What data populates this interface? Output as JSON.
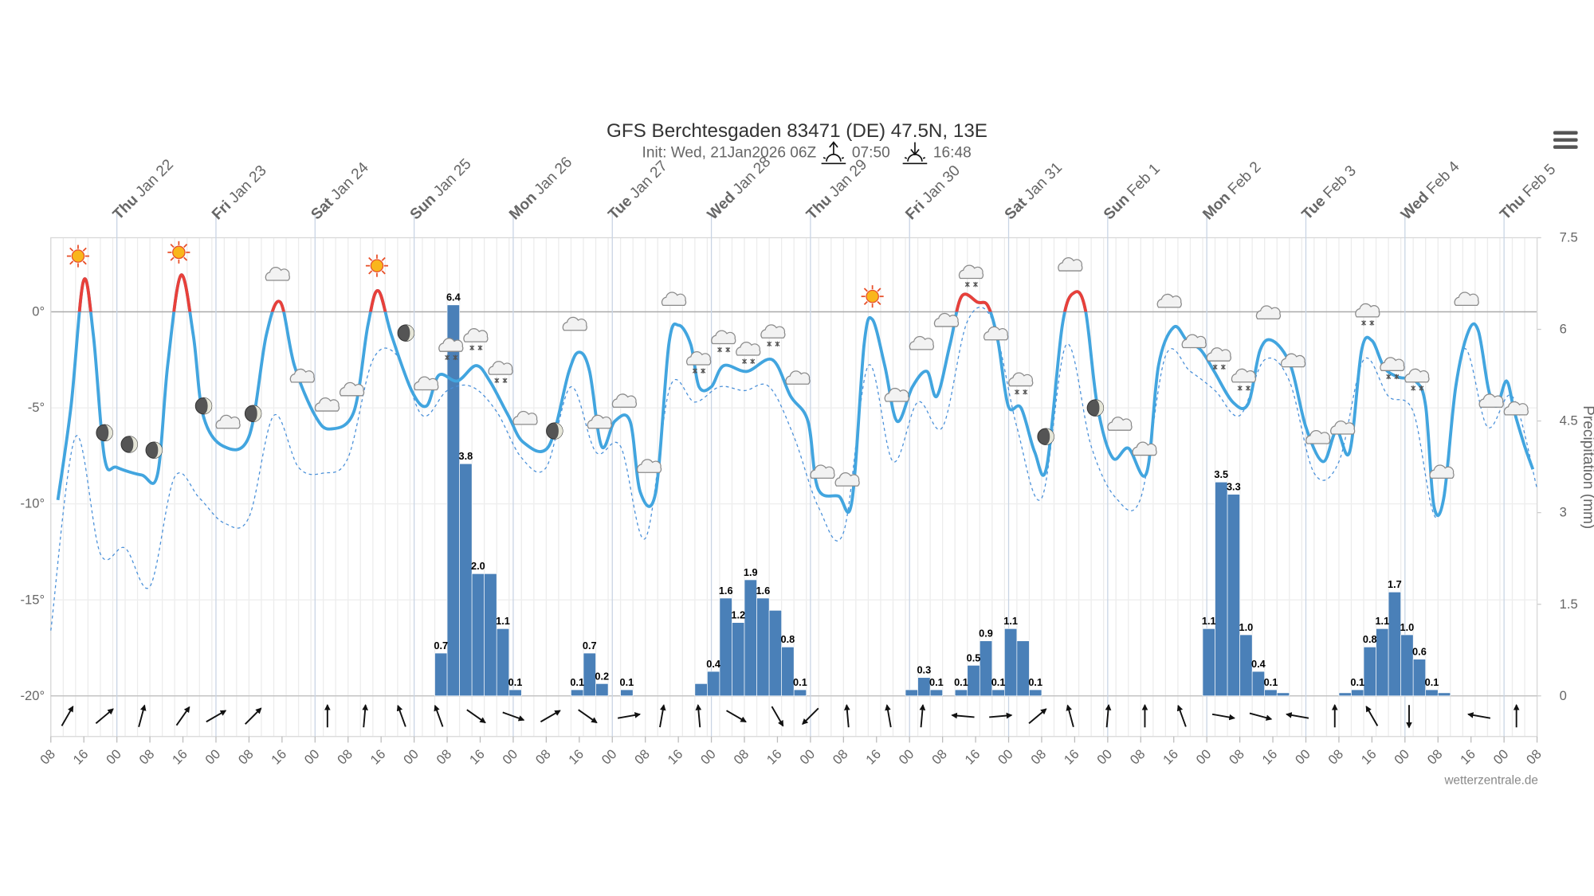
{
  "chart_data": {
    "type": "meteogram",
    "title": "GFS Berchtesgaden 83471 (DE) 47.5N, 13E",
    "subtitle": "Init: Wed, 21Jan2026 06Z",
    "sunrise": "07:50",
    "sunset": "16:48",
    "credit": "wetterzentrale.de",
    "xlim": [
      0,
      360
    ],
    "xticks": [
      {
        "value": 0,
        "label": "08"
      },
      {
        "value": 8,
        "label": "16"
      },
      {
        "value": 16,
        "label": "00"
      },
      {
        "value": 24,
        "label": "08"
      },
      {
        "value": 32,
        "label": "16"
      },
      {
        "value": 40,
        "label": "00"
      },
      {
        "value": 48,
        "label": "08"
      },
      {
        "value": 56,
        "label": "16"
      },
      {
        "value": 64,
        "label": "00"
      },
      {
        "value": 72,
        "label": "08"
      },
      {
        "value": 80,
        "label": "16"
      },
      {
        "value": 88,
        "label": "00"
      },
      {
        "value": 96,
        "label": "08"
      },
      {
        "value": 104,
        "label": "16"
      },
      {
        "value": 112,
        "label": "00"
      },
      {
        "value": 120,
        "label": "08"
      },
      {
        "value": 128,
        "label": "16"
      },
      {
        "value": 136,
        "label": "00"
      },
      {
        "value": 144,
        "label": "08"
      },
      {
        "value": 152,
        "label": "16"
      },
      {
        "value": 160,
        "label": "00"
      },
      {
        "value": 168,
        "label": "08"
      },
      {
        "value": 176,
        "label": "16"
      },
      {
        "value": 184,
        "label": "00"
      },
      {
        "value": 192,
        "label": "08"
      },
      {
        "value": 200,
        "label": "16"
      },
      {
        "value": 208,
        "label": "00"
      },
      {
        "value": 216,
        "label": "08"
      },
      {
        "value": 224,
        "label": "16"
      },
      {
        "value": 232,
        "label": "00"
      },
      {
        "value": 240,
        "label": "08"
      },
      {
        "value": 248,
        "label": "16"
      },
      {
        "value": 256,
        "label": "00"
      },
      {
        "value": 264,
        "label": "08"
      },
      {
        "value": 272,
        "label": "16"
      },
      {
        "value": 280,
        "label": "00"
      },
      {
        "value": 288,
        "label": "08"
      },
      {
        "value": 296,
        "label": "16"
      },
      {
        "value": 304,
        "label": "00"
      },
      {
        "value": 312,
        "label": "08"
      },
      {
        "value": 320,
        "label": "16"
      },
      {
        "value": 328,
        "label": "00"
      },
      {
        "value": 336,
        "label": "08"
      },
      {
        "value": 344,
        "label": "16"
      },
      {
        "value": 352,
        "label": "00"
      },
      {
        "value": 360,
        "label": "08"
      }
    ],
    "day_ticks": [
      {
        "value": 16,
        "weekday": "Thu",
        "date": "Jan 22"
      },
      {
        "value": 40,
        "weekday": "Fri",
        "date": "Jan 23"
      },
      {
        "value": 64,
        "weekday": "Sat",
        "date": "Jan 24"
      },
      {
        "value": 88,
        "weekday": "Sun",
        "date": "Jan 25"
      },
      {
        "value": 112,
        "weekday": "Mon",
        "date": "Jan 26"
      },
      {
        "value": 136,
        "weekday": "Tue",
        "date": "Jan 27"
      },
      {
        "value": 160,
        "weekday": "Wed",
        "date": "Jan 28"
      },
      {
        "value": 184,
        "weekday": "Thu",
        "date": "Jan 29"
      },
      {
        "value": 208,
        "weekday": "Fri",
        "date": "Jan 30"
      },
      {
        "value": 232,
        "weekday": "Sat",
        "date": "Jan 31"
      },
      {
        "value": 256,
        "weekday": "Sun",
        "date": "Feb 1"
      },
      {
        "value": 280,
        "weekday": "Mon",
        "date": "Feb 2"
      },
      {
        "value": 304,
        "weekday": "Tue",
        "date": "Feb 3"
      },
      {
        "value": 328,
        "weekday": "Wed",
        "date": "Feb 4"
      },
      {
        "value": 352,
        "weekday": "Thu",
        "date": "Feb 5"
      }
    ],
    "ylim": [
      -20,
      3.86
    ],
    "yticks": [
      {
        "value": 0,
        "label": "0°"
      },
      {
        "value": -5,
        "label": "-5°"
      },
      {
        "value": -10,
        "label": "-10°"
      },
      {
        "value": -15,
        "label": "-15°"
      },
      {
        "value": -20,
        "label": "-20°"
      }
    ],
    "y2lim": [
      0,
      7.5
    ],
    "y2ticks": [
      0,
      1.5,
      3,
      4.5,
      6,
      7.5
    ],
    "y2label": "Precipitation (mm)",
    "temperature": {
      "color": "#42a5df",
      "color_above_zero": "#e8403a",
      "x": [
        1.7,
        4.9,
        7.9,
        10.3,
        13,
        16,
        22,
        25.8,
        28.3,
        31.5,
        34.5,
        36.9,
        41.8,
        48,
        52.2,
        55.6,
        59,
        64,
        67.7,
        73.4,
        76.8,
        79.3,
        82.5,
        87.4,
        91,
        94,
        98.5,
        103,
        106.3,
        110.8,
        114.5,
        120.6,
        125.5,
        128,
        130.5,
        133.4,
        136.6,
        140.3,
        142.8,
        146.5,
        149.7,
        152.1,
        155,
        157,
        160,
        163,
        168.6,
        174.8,
        179.2,
        183.4,
        185.8,
        190.8,
        194,
        197,
        199,
        202,
        205,
        208.7,
        212.2,
        214.6,
        217.8,
        220.6,
        224.5,
        227,
        229.4,
        231.9,
        235,
        238.3,
        241.2,
        245,
        247.9,
        250.6,
        253.5,
        257.2,
        261,
        265.4,
        268.3,
        272,
        275.2,
        278.6,
        281.8,
        286.3,
        290,
        292.9,
        295.9,
        300.3,
        304,
        308.2,
        311.4,
        314.6,
        317.5,
        320,
        323,
        326.4,
        330.5,
        333,
        335,
        337.4,
        340.3,
        343.4,
        345.8,
        348.3,
        350.3,
        352.6,
        354.5,
        357,
        359
      ],
      "values": [
        -9.8,
        -4.9,
        1.6,
        -1.2,
        -7.6,
        -8.1,
        -8.5,
        -8.5,
        -2.8,
        1.9,
        -1.2,
        -5.4,
        -7.0,
        -6.5,
        -1.2,
        0.5,
        -2.8,
        -5.4,
        -6.1,
        -5.2,
        -0.7,
        1.1,
        -1.2,
        -4.1,
        -4.9,
        -3.3,
        -3.6,
        -2.8,
        -3.6,
        -5.4,
        -6.8,
        -7.0,
        -3.1,
        -2.1,
        -3.1,
        -7.0,
        -5.7,
        -5.7,
        -9.4,
        -9.4,
        -1.7,
        -0.7,
        -1.7,
        -3.9,
        -3.9,
        -2.8,
        -3.1,
        -2.5,
        -4.4,
        -5.7,
        -9.2,
        -9.6,
        -9.9,
        -1.7,
        -0.4,
        -2.8,
        -5.7,
        -3.9,
        -3.1,
        -4.4,
        -1.7,
        0.8,
        0.5,
        0.3,
        -1.5,
        -4.9,
        -5.0,
        -7.3,
        -8.1,
        -0.7,
        1.0,
        0.1,
        -4.9,
        -7.6,
        -7.1,
        -8.4,
        -2.8,
        -0.8,
        -1.5,
        -2.0,
        -3.1,
        -4.7,
        -4.8,
        -2.0,
        -1.5,
        -2.8,
        -6.0,
        -7.8,
        -6.2,
        -7.3,
        -2.0,
        -1.5,
        -2.9,
        -3.4,
        -3.6,
        -4.9,
        -10.1,
        -9.7,
        -3.9,
        -1.0,
        -1.0,
        -4.1,
        -4.9,
        -3.6,
        -5.2,
        -7.0,
        -8.2
      ]
    },
    "dewpoint": {
      "color": "#4a90d9",
      "x": [
        0,
        6,
        12,
        18,
        24,
        30,
        36,
        42,
        48,
        54,
        60,
        66,
        72,
        78,
        84,
        90,
        96,
        102,
        108,
        114,
        120,
        126,
        132,
        138,
        144,
        150,
        156,
        162,
        168,
        174,
        180,
        186,
        192,
        198,
        204,
        210,
        216,
        222,
        228,
        234,
        240,
        246,
        252,
        258,
        264,
        270,
        276,
        282,
        288,
        294,
        300,
        306,
        312,
        318,
        324,
        330,
        336,
        342,
        348,
        354,
        360
      ],
      "values": [
        -16.6,
        -6.5,
        -12.6,
        -12.3,
        -14.3,
        -8.6,
        -9.7,
        -11.0,
        -10.7,
        -5.4,
        -8.1,
        -8.4,
        -7.6,
        -2.5,
        -2.3,
        -5.4,
        -4.1,
        -3.9,
        -5.2,
        -7.6,
        -8.1,
        -3.9,
        -7.3,
        -7.0,
        -11.8,
        -3.9,
        -4.7,
        -3.9,
        -4.1,
        -3.9,
        -6.5,
        -10.2,
        -11.5,
        -2.8,
        -7.8,
        -4.7,
        -6.0,
        -0.5,
        -0.4,
        -6.0,
        -9.7,
        -1.7,
        -7.0,
        -9.7,
        -9.7,
        -2.3,
        -3.1,
        -4.1,
        -5.4,
        -2.5,
        -3.6,
        -8.4,
        -7.8,
        -2.5,
        -4.4,
        -5.2,
        -10.7,
        -2.0,
        -6.0,
        -4.4,
        -9.2
      ]
    },
    "precipitation": {
      "axis": "y2",
      "color": "#4a80b8",
      "x": [
        93,
        96,
        99,
        102,
        105,
        108,
        111,
        126,
        129,
        132,
        138,
        156,
        159,
        162,
        165,
        168,
        171,
        174,
        177,
        180,
        207,
        210,
        213,
        219,
        222,
        225,
        228,
        231,
        234,
        237,
        279,
        282,
        285,
        288,
        291,
        294,
        297,
        312,
        315,
        318,
        321,
        324,
        327,
        330,
        333,
        336
      ],
      "values": [
        0.7,
        6.4,
        3.8,
        2.0,
        2.0,
        1.1,
        0.1,
        0.1,
        0.7,
        0.2,
        0.1,
        0.2,
        0.4,
        1.6,
        1.2,
        1.9,
        1.6,
        1.4,
        0.8,
        0.1,
        0.1,
        0.3,
        0.1,
        0.1,
        0.5,
        0.9,
        0.1,
        1.1,
        0.9,
        0.1,
        1.1,
        3.5,
        3.3,
        1.0,
        0.4,
        0.1,
        0.05,
        0.05,
        0.1,
        0.8,
        1.1,
        1.7,
        1.0,
        0.6,
        0.1,
        0.05
      ],
      "value_labels": [
        "0.7",
        "6.4",
        "3.8",
        "2.0",
        null,
        "1.1",
        "0.1",
        "0.1",
        "0.7",
        "0.2",
        "0.1",
        null,
        "0.4",
        "1.6",
        "1.2",
        "1.9",
        "1.6",
        null,
        "0.8",
        "0.1",
        null,
        "0.3",
        "0.1",
        "0.1",
        "0.5",
        "0.9",
        "0.1",
        "1.1",
        null,
        "0.1",
        "1.1",
        "3.5",
        "3.3",
        "1.0",
        "0.4",
        "0.1",
        null,
        null,
        "0.1",
        "0.8",
        "1.1",
        "1.7",
        "1.0",
        "0.6",
        "0.1",
        null
      ]
    },
    "wind": {
      "x": [
        4,
        13,
        22,
        32,
        40,
        49,
        67,
        76,
        85,
        94,
        103,
        112,
        121,
        130,
        140,
        148,
        157,
        166,
        176,
        184,
        193,
        203,
        211,
        221,
        230,
        239,
        247,
        256,
        265,
        274,
        284,
        293,
        302,
        311,
        320,
        329,
        346,
        355
      ],
      "direction": [
        30,
        50,
        15,
        35,
        60,
        45,
        0,
        5,
        340,
        340,
        125,
        110,
        60,
        125,
        80,
        10,
        355,
        120,
        150,
        225,
        355,
        350,
        5,
        275,
        85,
        50,
        345,
        5,
        0,
        340,
        100,
        105,
        280,
        0,
        330,
        180,
        280,
        0
      ]
    },
    "weather_symbols": [
      {
        "x": 6.6,
        "y": 2.9,
        "symbol": "sun"
      },
      {
        "x": 13,
        "y": -6.3,
        "symbol": "moon"
      },
      {
        "x": 19,
        "y": -6.9,
        "symbol": "moon"
      },
      {
        "x": 25,
        "y": -7.2,
        "symbol": "moon"
      },
      {
        "x": 31,
        "y": 3.1,
        "symbol": "sun"
      },
      {
        "x": 37,
        "y": -4.9,
        "symbol": "moon"
      },
      {
        "x": 43,
        "y": -5.8,
        "symbol": "cloud"
      },
      {
        "x": 49,
        "y": -5.3,
        "symbol": "moon"
      },
      {
        "x": 55,
        "y": 1.9,
        "symbol": "cloud"
      },
      {
        "x": 61,
        "y": -3.4,
        "symbol": "cloud"
      },
      {
        "x": 67,
        "y": -4.9,
        "symbol": "cloud"
      },
      {
        "x": 73,
        "y": -4.1,
        "symbol": "cloud"
      },
      {
        "x": 79,
        "y": 2.4,
        "symbol": "sun"
      },
      {
        "x": 86,
        "y": -1.1,
        "symbol": "moon"
      },
      {
        "x": 91,
        "y": -3.8,
        "symbol": "cloud"
      },
      {
        "x": 97,
        "y": -1.9,
        "symbol": "snow"
      },
      {
        "x": 103,
        "y": -1.4,
        "symbol": "snow"
      },
      {
        "x": 109,
        "y": -3.1,
        "symbol": "snow"
      },
      {
        "x": 115,
        "y": -5.6,
        "symbol": "cloud"
      },
      {
        "x": 122,
        "y": -6.2,
        "symbol": "moon"
      },
      {
        "x": 127,
        "y": -0.7,
        "symbol": "cloud"
      },
      {
        "x": 133,
        "y": -5.8,
        "symbol": "cloud"
      },
      {
        "x": 139,
        "y": -4.7,
        "symbol": "cloud"
      },
      {
        "x": 145,
        "y": -8.1,
        "symbol": "cloud"
      },
      {
        "x": 151,
        "y": 0.6,
        "symbol": "cloud"
      },
      {
        "x": 157,
        "y": -2.6,
        "symbol": "snow"
      },
      {
        "x": 163,
        "y": -1.5,
        "symbol": "snow"
      },
      {
        "x": 169,
        "y": -2.1,
        "symbol": "snow"
      },
      {
        "x": 175,
        "y": -1.2,
        "symbol": "snow"
      },
      {
        "x": 181,
        "y": -3.5,
        "symbol": "cloud"
      },
      {
        "x": 187,
        "y": -8.4,
        "symbol": "cloud"
      },
      {
        "x": 193,
        "y": -8.8,
        "symbol": "cloud"
      },
      {
        "x": 199,
        "y": 0.8,
        "symbol": "sun"
      },
      {
        "x": 205,
        "y": -4.4,
        "symbol": "cloud"
      },
      {
        "x": 211,
        "y": -1.7,
        "symbol": "cloud"
      },
      {
        "x": 217,
        "y": -0.5,
        "symbol": "cloud"
      },
      {
        "x": 223,
        "y": 1.9,
        "symbol": "snow"
      },
      {
        "x": 229,
        "y": -1.2,
        "symbol": "cloud"
      },
      {
        "x": 235,
        "y": -3.7,
        "symbol": "snow"
      },
      {
        "x": 241,
        "y": -6.5,
        "symbol": "moon"
      },
      {
        "x": 247,
        "y": 2.4,
        "symbol": "cloud"
      },
      {
        "x": 253,
        "y": -5.0,
        "symbol": "moon"
      },
      {
        "x": 259,
        "y": -5.9,
        "symbol": "cloud"
      },
      {
        "x": 265,
        "y": -7.2,
        "symbol": "cloud"
      },
      {
        "x": 271,
        "y": 0.5,
        "symbol": "cloud"
      },
      {
        "x": 277,
        "y": -1.6,
        "symbol": "cloud"
      },
      {
        "x": 283,
        "y": -2.4,
        "symbol": "snow"
      },
      {
        "x": 289,
        "y": -3.5,
        "symbol": "snow"
      },
      {
        "x": 295,
        "y": -0.1,
        "symbol": "cloud"
      },
      {
        "x": 301,
        "y": -2.6,
        "symbol": "cloud"
      },
      {
        "x": 307,
        "y": -6.6,
        "symbol": "cloud"
      },
      {
        "x": 313,
        "y": -6.1,
        "symbol": "cloud"
      },
      {
        "x": 319,
        "y": -0.1,
        "symbol": "snow"
      },
      {
        "x": 325,
        "y": -2.9,
        "symbol": "snow"
      },
      {
        "x": 331,
        "y": -3.5,
        "symbol": "snow"
      },
      {
        "x": 337,
        "y": -8.4,
        "symbol": "cloud"
      },
      {
        "x": 343,
        "y": 0.6,
        "symbol": "cloud"
      },
      {
        "x": 349,
        "y": -4.7,
        "symbol": "cloud"
      },
      {
        "x": 355,
        "y": -5.1,
        "symbol": "cloud"
      }
    ]
  }
}
